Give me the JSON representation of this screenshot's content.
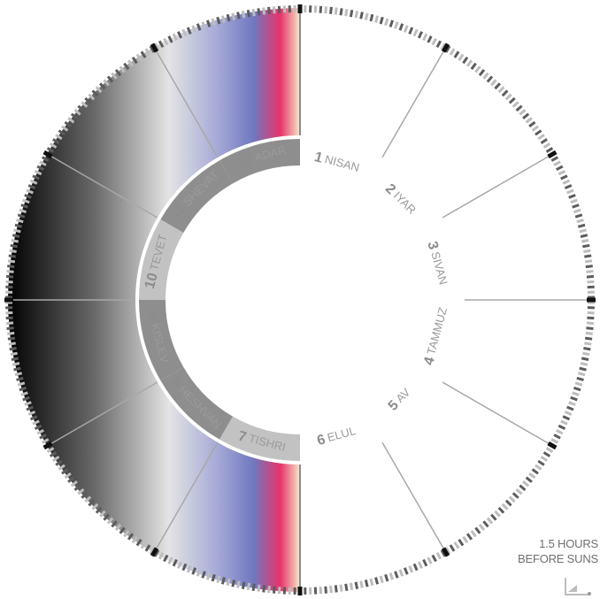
{
  "months": [
    {
      "num": "1",
      "name": "NISAN"
    },
    {
      "num": "2",
      "name": "IYAR"
    },
    {
      "num": "3",
      "name": "SIVAN"
    },
    {
      "num": "4",
      "name": "TAMMUZ"
    },
    {
      "num": "5",
      "name": "AV"
    },
    {
      "num": "6",
      "name": "ELUL"
    },
    {
      "num": "7",
      "name": "TISHRI"
    },
    {
      "num": "8",
      "name": "HESHVAN"
    },
    {
      "num": "9",
      "name": "KISLEV"
    },
    {
      "num": "10",
      "name": "TEVET"
    },
    {
      "num": "11",
      "name": "SHEVAT"
    },
    {
      "num": "12",
      "name": "ADAR"
    }
  ],
  "note": {
    "line1": "1.5 HOURS",
    "line2": "BEFORE SUNS"
  },
  "colors": {
    "night": "#000000",
    "dawn_blue": "#6f78c0",
    "dawn_pink": "#e8336a",
    "sun_yellow": "#fff4c8",
    "inner_band_dark": "#8a8a8a",
    "inner_band_light": "#c4c4c4",
    "tick_dark": "#5c5c5c",
    "tick_light": "#bdbdbd",
    "label": "#8c8c8c"
  }
}
